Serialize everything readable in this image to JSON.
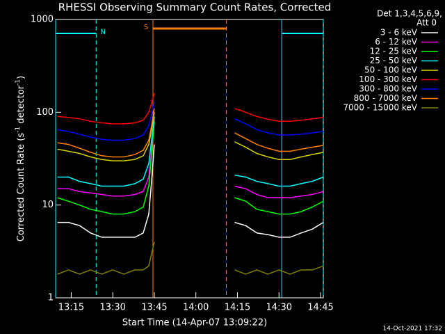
{
  "chart_data": {
    "type": "line",
    "title": "RHESSI Observing Summary Count Rates, Corrected",
    "x_label": "Start Time (14-Apr-07 13:09:22)",
    "y_label_parts": [
      "Corrected Count Rate (s",
      "-1",
      " detector",
      "-1",
      ")"
    ],
    "legend_header": [
      "Det 1,3,4,5,6,9,",
      "Att 0"
    ],
    "footer": "14-Oct-2021 17:32",
    "log_y": true,
    "ylim": [
      1,
      1000
    ],
    "yticks": [
      1,
      10,
      100,
      1000
    ],
    "xlim": [
      "13:09:22",
      "14:46"
    ],
    "xticks": [
      "13:15",
      "13:30",
      "13:45",
      "14:00",
      "14:15",
      "14:30",
      "14:45"
    ],
    "x": [
      "13:10",
      "13:14",
      "13:18",
      "13:22",
      "13:26",
      "13:30",
      "13:34",
      "13:38",
      "13:41",
      "13:43",
      "13:44",
      "13:45",
      "14:00",
      "14:14",
      "14:18",
      "14:22",
      "14:26",
      "14:30",
      "14:34",
      "14:38",
      "14:42",
      "14:46"
    ],
    "series": [
      {
        "name": "3 - 6 keV",
        "color": "#ffffff",
        "values": [
          6.5,
          6.5,
          6,
          5,
          4.5,
          4.5,
          4.5,
          4.5,
          5,
          8,
          18,
          45,
          null,
          6.5,
          6,
          5,
          4.8,
          4.5,
          4.5,
          5,
          5.5,
          6.5
        ]
      },
      {
        "name": "6 - 12 keV",
        "color": "#ff00ff",
        "values": [
          15,
          15,
          14,
          13.5,
          13,
          12.5,
          12.5,
          13,
          14,
          20,
          40,
          85,
          null,
          16,
          15,
          13,
          12,
          12,
          12,
          12.5,
          13,
          14
        ]
      },
      {
        "name": "12 - 25 keV",
        "color": "#00ff00",
        "values": [
          12,
          11,
          10,
          9,
          8.5,
          8,
          8,
          8.5,
          9.5,
          16,
          35,
          80,
          null,
          12,
          11,
          9,
          8.5,
          8,
          8,
          8.5,
          9.5,
          11
        ]
      },
      {
        "name": "25 - 50 keV",
        "color": "#00ffff",
        "values": [
          20,
          20,
          18,
          17,
          16,
          16,
          16,
          17,
          19,
          28,
          50,
          90,
          null,
          21,
          20,
          18,
          17,
          16,
          16,
          17,
          18,
          20
        ]
      },
      {
        "name": "50 - 100 keV",
        "color": "#d2d200",
        "values": [
          40,
          38,
          36,
          33,
          31,
          30,
          30,
          31,
          34,
          45,
          65,
          100,
          null,
          48,
          42,
          36,
          33,
          31,
          31,
          33,
          35,
          37
        ]
      },
      {
        "name": "100 - 300 keV",
        "color": "#ff0000",
        "values": [
          90,
          88,
          85,
          80,
          77,
          75,
          75,
          77,
          82,
          100,
          125,
          160,
          null,
          110,
          100,
          90,
          84,
          80,
          80,
          82,
          85,
          88
        ]
      },
      {
        "name": "300 - 800 keV",
        "color": "#0000ff",
        "values": [
          65,
          62,
          58,
          54,
          51,
          50,
          50,
          52,
          57,
          72,
          95,
          130,
          null,
          85,
          75,
          65,
          60,
          57,
          57,
          58,
          60,
          62
        ]
      },
      {
        "name": "800 - 7000 keV",
        "color": "#ff8000",
        "values": [
          47,
          45,
          41,
          37,
          34,
          33,
          33,
          35,
          39,
          50,
          72,
          110,
          null,
          60,
          52,
          45,
          41,
          38,
          38,
          40,
          42,
          44
        ]
      },
      {
        "name": "7000 - 15000 keV",
        "color": "#808000",
        "values": [
          1.8,
          2,
          1.8,
          2,
          1.8,
          2,
          1.8,
          2,
          2,
          2.2,
          3,
          4,
          null,
          2,
          1.8,
          2,
          1.8,
          2,
          1.8,
          2,
          2,
          2.2
        ]
      }
    ],
    "intervals": [
      {
        "label": "N",
        "color": "#00ffff",
        "start": "13:09:22",
        "end": "13:24"
      },
      {
        "label": "S",
        "color": "#ff8000",
        "start": "13:44:30",
        "end": "14:11"
      },
      {
        "label": "",
        "color": "#00ffff",
        "start": "14:31",
        "end": "14:46"
      }
    ]
  }
}
